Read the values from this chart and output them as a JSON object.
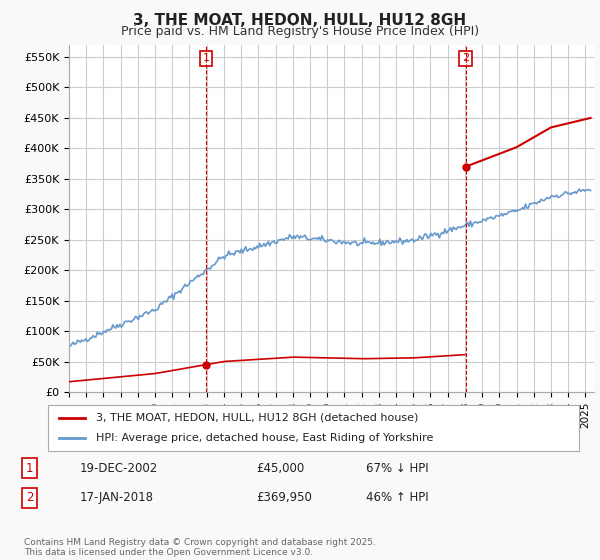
{
  "title": "3, THE MOAT, HEDON, HULL, HU12 8GH",
  "subtitle": "Price paid vs. HM Land Registry's House Price Index (HPI)",
  "ylim": [
    0,
    570000
  ],
  "yticks": [
    0,
    50000,
    100000,
    150000,
    200000,
    250000,
    300000,
    350000,
    400000,
    450000,
    500000,
    550000
  ],
  "ytick_labels": [
    "£0",
    "£50K",
    "£100K",
    "£150K",
    "£200K",
    "£250K",
    "£300K",
    "£350K",
    "£400K",
    "£450K",
    "£500K",
    "£550K"
  ],
  "xlim_start": 1995.0,
  "xlim_end": 2025.5,
  "bg_color": "#f9f9f9",
  "plot_bg_color": "#ffffff",
  "grid_color": "#cccccc",
  "hpi_line_color": "#6699cc",
  "price_line_color": "#cc0000",
  "sale1_date_num": 2002.97,
  "sale1_price": 45000,
  "sale2_date_num": 2018.05,
  "sale2_price": 369950,
  "legend_entry1": "3, THE MOAT, HEDON, HULL, HU12 8GH (detached house)",
  "legend_entry2": "HPI: Average price, detached house, East Riding of Yorkshire",
  "table_row1": [
    "1",
    "19-DEC-2002",
    "£45,000",
    "67% ↓ HPI"
  ],
  "table_row2": [
    "2",
    "17-JAN-2018",
    "£369,950",
    "46% ↑ HPI"
  ],
  "footer": "Contains HM Land Registry data © Crown copyright and database right 2025.\nThis data is licensed under the Open Government Licence v3.0.",
  "title_fontsize": 11,
  "subtitle_fontsize": 9,
  "tick_fontsize": 8,
  "legend_fontsize": 8,
  "table_fontsize": 8.5,
  "footer_fontsize": 6.5
}
